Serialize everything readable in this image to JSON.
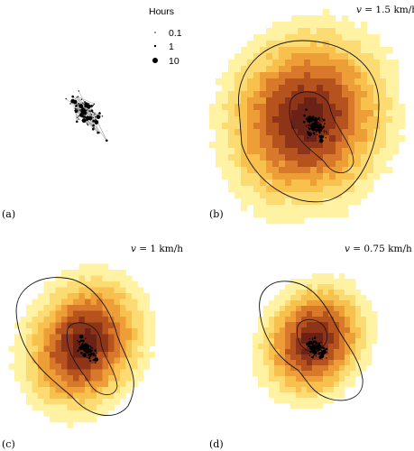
{
  "figure": {
    "legend": {
      "title": "Hours",
      "entries": [
        {
          "label": "0.1",
          "value": 0.1
        },
        {
          "label": "1",
          "value": 1
        },
        {
          "label": "10",
          "value": 10
        }
      ]
    },
    "panels": [
      {
        "id": "a",
        "label": "(a)",
        "speed_var": "",
        "speed_text": ""
      },
      {
        "id": "b",
        "label": "(b)",
        "speed_var": "v",
        "speed_text": " = 1.5 km/h"
      },
      {
        "id": "c",
        "label": "(c)",
        "speed_var": "v",
        "speed_text": " = 1 km/h"
      },
      {
        "id": "d",
        "label": "(d)",
        "speed_var": "v",
        "speed_text": " = 0.75 km/h"
      }
    ]
  },
  "colors": {
    "outer": "#fff5a8",
    "mid": "#f5b43c",
    "inner": "#c66a1e",
    "core": "#7a2a18",
    "contour": "#111111",
    "points": "#000000",
    "edges": "#999999"
  },
  "chart_data": [
    {
      "type": "scatter",
      "panel": "a",
      "description": "track points sized by hours, connected by path"
    },
    {
      "type": "heatmap",
      "panel": "b",
      "speed_kmh": 1.5
    },
    {
      "type": "heatmap",
      "panel": "c",
      "speed_kmh": 1
    },
    {
      "type": "heatmap",
      "panel": "d",
      "speed_kmh": 0.75
    }
  ]
}
